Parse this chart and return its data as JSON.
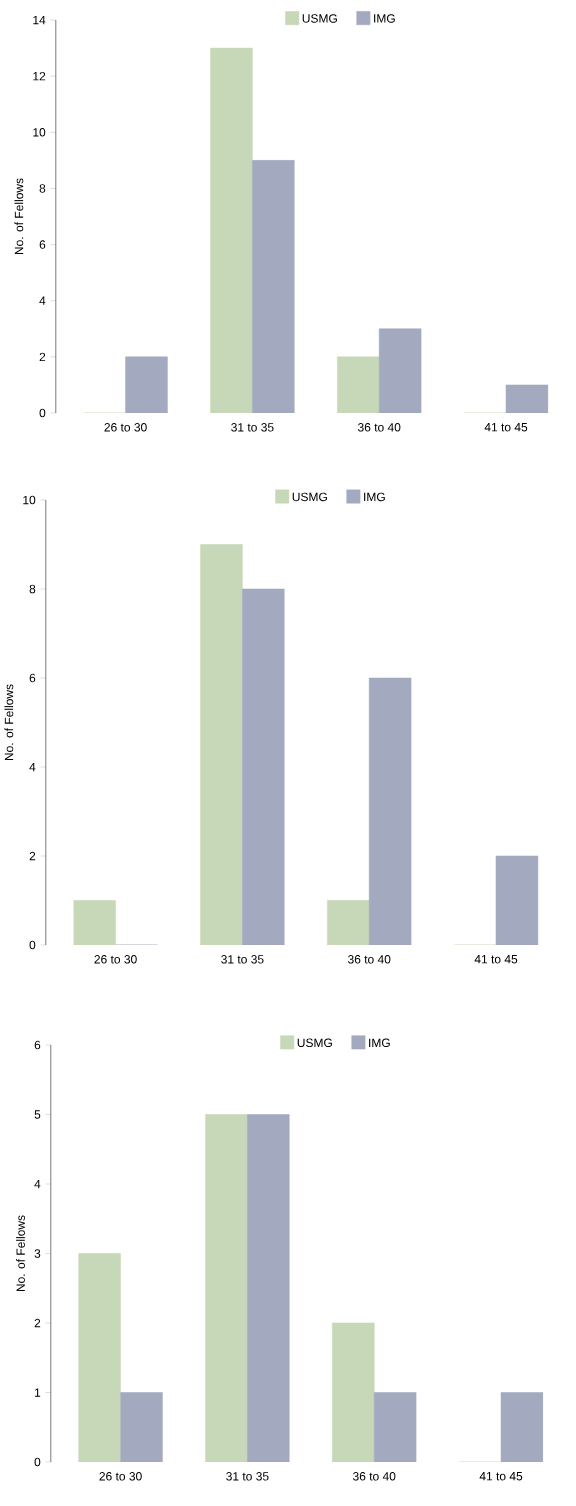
{
  "chart_data": [
    {
      "type": "bar",
      "categories": [
        "26 to 30",
        "31 to 35",
        "36 to 40",
        "41 to 45"
      ],
      "ylabel": "No. of Fellows",
      "ylim": [
        0,
        14
      ],
      "yticks": [
        0,
        2,
        4,
        6,
        8,
        10,
        12,
        14
      ],
      "legend": "top",
      "series": [
        {
          "name": "USMG",
          "color": "#c7d8b8",
          "values": [
            0,
            13,
            2,
            0
          ]
        },
        {
          "name": "IMG",
          "color": "#a3a9bf",
          "values": [
            2,
            9,
            3,
            1
          ]
        }
      ]
    },
    {
      "type": "bar",
      "categories": [
        "26 to 30",
        "31 to 35",
        "36 to 40",
        "41 to 45"
      ],
      "ylabel": "No. of Fellows",
      "ylim": [
        0,
        10
      ],
      "yticks": [
        0,
        2,
        4,
        6,
        8,
        10
      ],
      "legend": "top",
      "series": [
        {
          "name": "USMG",
          "color": "#c7d8b8",
          "values": [
            1,
            9,
            1,
            0
          ]
        },
        {
          "name": "IMG",
          "color": "#a3a9bf",
          "values": [
            0,
            8,
            6,
            2
          ]
        }
      ]
    },
    {
      "type": "bar",
      "categories": [
        "26 to 30",
        "31 to 35",
        "36 to 40",
        "41 to 45"
      ],
      "ylabel": "No. of Fellows",
      "ylim": [
        0,
        6
      ],
      "yticks": [
        0,
        1,
        2,
        3,
        4,
        5,
        6
      ],
      "legend": "top",
      "series": [
        {
          "name": "USMG",
          "color": "#c7d8b8",
          "values": [
            3,
            5,
            2,
            0
          ]
        },
        {
          "name": "IMG",
          "color": "#a3a9bf",
          "values": [
            1,
            5,
            1,
            1
          ]
        }
      ]
    }
  ]
}
